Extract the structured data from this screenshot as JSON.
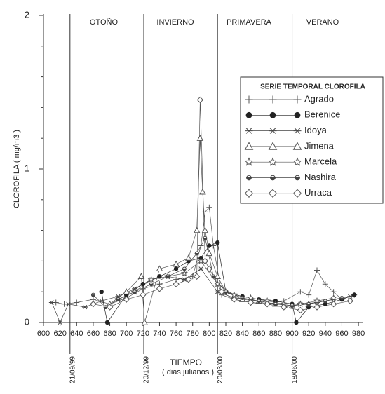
{
  "chart_data": {
    "type": "line",
    "ylabel": "CLOROFILA ( mg/m3 )",
    "xlabel": "TIEMPO",
    "xlabel_note": "( dias julianos )",
    "xlim": [
      600,
      985
    ],
    "ylim": [
      0,
      2
    ],
    "xticks": [
      600,
      620,
      640,
      660,
      680,
      700,
      720,
      740,
      760,
      780,
      800,
      820,
      840,
      860,
      880,
      900,
      920,
      940,
      960,
      980
    ],
    "yticks": [
      0,
      1,
      2
    ],
    "yminorticks": [
      0.2,
      0.4,
      0.6,
      0.8,
      1.2,
      1.4,
      1.6,
      1.8
    ],
    "seasons": [
      {
        "name": "OTOÑO",
        "day": 632,
        "date": "21/09/99"
      },
      {
        "name": "INVIERNO",
        "day": 721,
        "date": "20/12/99"
      },
      {
        "name": "PRIMAVERA",
        "day": 810,
        "date": "20/03/00"
      },
      {
        "name": "VERANO",
        "day": 900,
        "date": "18/06/00"
      }
    ],
    "legend_title": "SERIE TEMPORAL CLOROFILA",
    "legend_position": "upper right",
    "series": [
      {
        "name": "Agrado",
        "color": "#555555",
        "marker": "plus",
        "x": [
          615,
          625,
          640,
          660,
          680,
          700,
          720,
          740,
          760,
          780,
          790,
          795,
          800,
          805,
          815,
          830,
          850,
          870,
          890,
          910,
          920,
          930,
          940,
          950,
          960,
          975
        ],
        "values": [
          0.13,
          0.12,
          0.13,
          0.15,
          0.12,
          0.16,
          0.22,
          0.25,
          0.28,
          0.3,
          0.5,
          0.72,
          0.75,
          0.5,
          0.18,
          0.15,
          0.13,
          0.12,
          0.14,
          0.2,
          0.18,
          0.34,
          0.25,
          0.2,
          0.15,
          0.18
        ]
      },
      {
        "name": "Berenice",
        "color": "#222222",
        "marker": "circle",
        "x": [
          670,
          677,
          700,
          720,
          740,
          760,
          775,
          790,
          800,
          810,
          820,
          840,
          860,
          880,
          900,
          905,
          920,
          940,
          960,
          975
        ],
        "values": [
          0.2,
          0.0,
          0.18,
          0.25,
          0.3,
          0.35,
          0.4,
          0.42,
          0.5,
          0.52,
          0.2,
          0.17,
          0.15,
          0.14,
          0.12,
          0.0,
          0.1,
          0.12,
          0.15,
          0.18
        ]
      },
      {
        "name": "Idoya",
        "color": "#444444",
        "marker": "asterisk",
        "x": [
          610,
          620,
          630,
          650,
          670,
          690,
          710,
          730,
          750,
          770,
          790,
          810,
          830,
          850,
          870,
          890,
          910,
          930,
          950,
          970
        ],
        "values": [
          0.13,
          0.0,
          0.12,
          0.1,
          0.14,
          0.17,
          0.22,
          0.28,
          0.3,
          0.28,
          0.35,
          0.2,
          0.16,
          0.15,
          0.12,
          0.1,
          0.12,
          0.13,
          0.15,
          0.17
        ]
      },
      {
        "name": "Jimena",
        "color": "#555555",
        "marker": "triangle",
        "x": [
          680,
          700,
          718,
          722,
          740,
          760,
          775,
          785,
          789,
          792,
          795,
          800,
          810,
          820,
          840,
          860,
          880,
          900,
          920
        ],
        "values": [
          0.12,
          0.2,
          0.3,
          0.0,
          0.35,
          0.38,
          0.42,
          0.6,
          1.2,
          0.85,
          0.6,
          0.45,
          0.3,
          0.2,
          0.15,
          0.14,
          0.12,
          0.11,
          0.12
        ]
      },
      {
        "name": "Marcela",
        "color": "#555555",
        "marker": "star",
        "x": [
          690,
          710,
          730,
          750,
          770,
          790,
          810,
          830,
          850,
          870,
          890,
          910,
          930,
          950
        ],
        "values": [
          0.15,
          0.2,
          0.28,
          0.3,
          0.32,
          0.4,
          0.25,
          0.18,
          0.16,
          0.14,
          0.12,
          0.12,
          0.14,
          0.16
        ]
      },
      {
        "name": "Nashira",
        "color": "#444444",
        "marker": "dot",
        "x": [
          660,
          675,
          690,
          710,
          730,
          750,
          770,
          785,
          795,
          805,
          820,
          840,
          860,
          880,
          900,
          920,
          940,
          960
        ],
        "values": [
          0.18,
          0.1,
          0.15,
          0.2,
          0.25,
          0.3,
          0.35,
          0.45,
          0.55,
          0.3,
          0.2,
          0.16,
          0.14,
          0.12,
          0.11,
          0.12,
          0.14,
          0.16
        ]
      },
      {
        "name": "Urraca",
        "color": "#555555",
        "marker": "diamond",
        "x": [
          660,
          680,
          700,
          720,
          740,
          760,
          775,
          785,
          789,
          795,
          800,
          815,
          830,
          850,
          870,
          890,
          910,
          930,
          950,
          970
        ],
        "values": [
          0.12,
          0.1,
          0.15,
          0.18,
          0.22,
          0.25,
          0.28,
          0.3,
          1.45,
          0.4,
          0.35,
          0.2,
          0.15,
          0.13,
          0.12,
          0.1,
          0.08,
          0.1,
          0.12,
          0.14
        ]
      }
    ]
  }
}
